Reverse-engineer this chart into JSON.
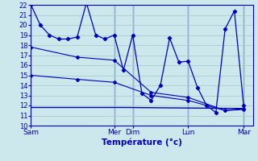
{
  "xlabel": "Température (°c)",
  "bg_color": "#cce8ec",
  "grid_color": "#aacccc",
  "line_color": "#0000bb",
  "ylim": [
    10,
    22
  ],
  "yticks": [
    10,
    11,
    12,
    13,
    14,
    15,
    16,
    17,
    18,
    19,
    20,
    21,
    22
  ],
  "day_labels": [
    "Sam",
    "Mer",
    "Dim",
    "Lun",
    "Mar"
  ],
  "day_x": [
    0,
    9,
    11,
    17,
    23
  ],
  "vline_x": [
    9,
    11,
    17,
    23
  ],
  "xlim": [
    0,
    24
  ],
  "series1_x": [
    0,
    1,
    2,
    3,
    4,
    5,
    6,
    7,
    8,
    9,
    10,
    11,
    12,
    13,
    14,
    15,
    16,
    17,
    18,
    19,
    20,
    21,
    22,
    23
  ],
  "series1_y": [
    22,
    20,
    19,
    18.6,
    18.6,
    18.8,
    22.2,
    19.0,
    18.6,
    19.0,
    15.5,
    19.0,
    13.2,
    12.5,
    14.0,
    18.7,
    16.3,
    16.4,
    13.8,
    12.0,
    11.3,
    19.6,
    21.4,
    12.0
  ],
  "series2_x": [
    0,
    5,
    9,
    13,
    17,
    21,
    23
  ],
  "series2_y": [
    17.8,
    16.8,
    16.5,
    13.3,
    12.8,
    11.5,
    11.7
  ],
  "series3_x": [
    0,
    5,
    9,
    13,
    17,
    21,
    23
  ],
  "series3_y": [
    15.0,
    14.6,
    14.3,
    13.0,
    12.5,
    11.5,
    11.6
  ],
  "series4_x": [
    0,
    10,
    23
  ],
  "series4_y": [
    11.8,
    11.8,
    11.7
  ]
}
